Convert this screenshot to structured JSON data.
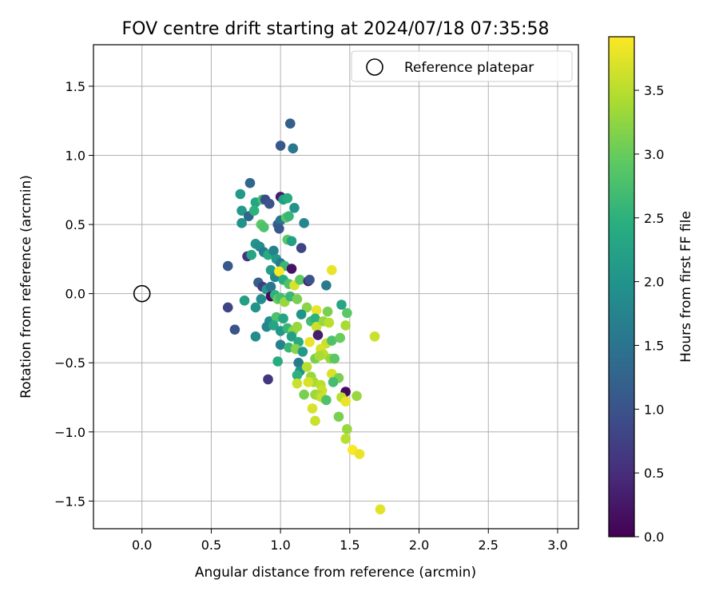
{
  "chart_data": {
    "type": "scatter",
    "title": "FOV centre drift starting at 2024/07/18 07:35:58",
    "xlabel": "Angular distance from reference (arcmin)",
    "ylabel": "Rotation from reference (arcmin)",
    "xlim": [
      -0.35,
      3.15
    ],
    "ylim": [
      -1.7,
      1.8
    ],
    "xticks": [
      0.0,
      0.5,
      1.0,
      1.5,
      2.0,
      2.5,
      3.0
    ],
    "xtick_labels": [
      "0.0",
      "0.5",
      "1.0",
      "1.5",
      "2.0",
      "2.5",
      "3.0"
    ],
    "yticks": [
      -1.5,
      -1.0,
      -0.5,
      0.0,
      0.5,
      1.0,
      1.5
    ],
    "ytick_labels": [
      "−1.5",
      "−1.0",
      "−0.5",
      "0.0",
      "0.5",
      "1.0",
      "1.5"
    ],
    "grid": true,
    "legend": {
      "placement": "top-right",
      "entries": [
        "Reference platepar"
      ]
    },
    "reference_point": {
      "x": 0.0,
      "y": 0.0
    },
    "colorbar": {
      "label": "Hours from first FF file",
      "colormap": "viridis",
      "range": [
        0.0,
        3.92
      ],
      "ticks": [
        0.0,
        0.5,
        1.0,
        1.5,
        2.0,
        2.5,
        3.0,
        3.5
      ],
      "tick_labels": [
        "0.0",
        "0.5",
        "1.0",
        "1.5",
        "2.0",
        "2.5",
        "3.0",
        "3.5"
      ]
    },
    "points": [
      {
        "x": 1.07,
        "y": 1.23,
        "t": 1.2
      },
      {
        "x": 1.0,
        "y": 1.07,
        "t": 1.05
      },
      {
        "x": 1.09,
        "y": 1.05,
        "t": 1.55
      },
      {
        "x": 0.78,
        "y": 0.8,
        "t": 1.3
      },
      {
        "x": 0.71,
        "y": 0.72,
        "t": 2.1
      },
      {
        "x": 0.72,
        "y": 0.6,
        "t": 2.1
      },
      {
        "x": 0.72,
        "y": 0.51,
        "t": 2.0
      },
      {
        "x": 0.77,
        "y": 0.56,
        "t": 1.3
      },
      {
        "x": 0.82,
        "y": 0.66,
        "t": 2.3
      },
      {
        "x": 0.87,
        "y": 0.68,
        "t": 2.7
      },
      {
        "x": 0.89,
        "y": 0.68,
        "t": 0.9
      },
      {
        "x": 0.92,
        "y": 0.65,
        "t": 1.0
      },
      {
        "x": 1.0,
        "y": 0.7,
        "t": 0.3
      },
      {
        "x": 1.02,
        "y": 0.68,
        "t": 2.2
      },
      {
        "x": 1.05,
        "y": 0.69,
        "t": 2.4
      },
      {
        "x": 1.1,
        "y": 0.62,
        "t": 2.0
      },
      {
        "x": 1.17,
        "y": 0.51,
        "t": 1.8
      },
      {
        "x": 0.81,
        "y": 0.6,
        "t": 2.5
      },
      {
        "x": 0.86,
        "y": 0.5,
        "t": 2.9
      },
      {
        "x": 0.88,
        "y": 0.48,
        "t": 2.8
      },
      {
        "x": 0.98,
        "y": 0.5,
        "t": 1.2
      },
      {
        "x": 1.0,
        "y": 0.53,
        "t": 1.5
      },
      {
        "x": 1.04,
        "y": 0.55,
        "t": 2.9
      },
      {
        "x": 1.06,
        "y": 0.56,
        "t": 2.6
      },
      {
        "x": 0.99,
        "y": 0.47,
        "t": 1.1
      },
      {
        "x": 1.05,
        "y": 0.39,
        "t": 2.9
      },
      {
        "x": 1.08,
        "y": 0.38,
        "t": 2.2
      },
      {
        "x": 1.15,
        "y": 0.33,
        "t": 0.8
      },
      {
        "x": 0.62,
        "y": 0.2,
        "t": 1.1
      },
      {
        "x": 0.76,
        "y": 0.27,
        "t": 0.6
      },
      {
        "x": 0.79,
        "y": 0.28,
        "t": 2.3
      },
      {
        "x": 0.82,
        "y": 0.36,
        "t": 2.0
      },
      {
        "x": 0.85,
        "y": 0.34,
        "t": 1.9
      },
      {
        "x": 0.88,
        "y": 0.3,
        "t": 1.6
      },
      {
        "x": 0.91,
        "y": 0.28,
        "t": 2.4
      },
      {
        "x": 0.95,
        "y": 0.31,
        "t": 1.7
      },
      {
        "x": 0.97,
        "y": 0.25,
        "t": 2.1
      },
      {
        "x": 1.0,
        "y": 0.22,
        "t": 1.6
      },
      {
        "x": 1.03,
        "y": 0.2,
        "t": 2.6
      },
      {
        "x": 1.08,
        "y": 0.18,
        "t": 0.2
      },
      {
        "x": 0.93,
        "y": 0.17,
        "t": 2.2
      },
      {
        "x": 0.96,
        "y": 0.12,
        "t": 1.8
      },
      {
        "x": 0.99,
        "y": 0.16,
        "t": 3.9
      },
      {
        "x": 1.02,
        "y": 0.1,
        "t": 2.4
      },
      {
        "x": 0.84,
        "y": 0.08,
        "t": 1.2
      },
      {
        "x": 0.87,
        "y": 0.05,
        "t": 0.7
      },
      {
        "x": 0.9,
        "y": 0.03,
        "t": 2.1
      },
      {
        "x": 0.93,
        "y": 0.05,
        "t": 1.5
      },
      {
        "x": 1.06,
        "y": 0.07,
        "t": 2.8
      },
      {
        "x": 1.1,
        "y": 0.06,
        "t": 3.7
      },
      {
        "x": 1.14,
        "y": 0.1,
        "t": 2.9
      },
      {
        "x": 1.2,
        "y": 0.09,
        "t": 0.4
      },
      {
        "x": 1.21,
        "y": 0.1,
        "t": 1.0
      },
      {
        "x": 1.33,
        "y": 0.06,
        "t": 1.6
      },
      {
        "x": 1.37,
        "y": 0.17,
        "t": 3.8
      },
      {
        "x": 0.93,
        "y": -0.02,
        "t": 0.1
      },
      {
        "x": 0.96,
        "y": -0.01,
        "t": 2.5
      },
      {
        "x": 0.98,
        "y": -0.04,
        "t": 3.0
      },
      {
        "x": 1.0,
        "y": -0.03,
        "t": 2.7
      },
      {
        "x": 1.03,
        "y": -0.06,
        "t": 3.3
      },
      {
        "x": 1.07,
        "y": -0.02,
        "t": 2.6
      },
      {
        "x": 1.12,
        "y": -0.04,
        "t": 3.1
      },
      {
        "x": 0.62,
        "y": -0.1,
        "t": 0.8
      },
      {
        "x": 0.74,
        "y": -0.05,
        "t": 2.2
      },
      {
        "x": 0.82,
        "y": -0.1,
        "t": 2.0
      },
      {
        "x": 0.86,
        "y": -0.04,
        "t": 1.9
      },
      {
        "x": 1.19,
        "y": -0.1,
        "t": 3.2
      },
      {
        "x": 1.26,
        "y": -0.12,
        "t": 3.8
      },
      {
        "x": 1.34,
        "y": -0.13,
        "t": 3.1
      },
      {
        "x": 1.44,
        "y": -0.08,
        "t": 2.3
      },
      {
        "x": 1.48,
        "y": -0.14,
        "t": 2.9
      },
      {
        "x": 1.15,
        "y": -0.15,
        "t": 2.0
      },
      {
        "x": 0.92,
        "y": -0.2,
        "t": 1.9
      },
      {
        "x": 0.97,
        "y": -0.17,
        "t": 2.8
      },
      {
        "x": 1.02,
        "y": -0.18,
        "t": 2.3
      },
      {
        "x": 0.67,
        "y": -0.26,
        "t": 1.0
      },
      {
        "x": 0.9,
        "y": -0.24,
        "t": 1.8
      },
      {
        "x": 0.95,
        "y": -0.23,
        "t": 2.3
      },
      {
        "x": 1.0,
        "y": -0.27,
        "t": 2.1
      },
      {
        "x": 1.05,
        "y": -0.25,
        "t": 2.6
      },
      {
        "x": 1.09,
        "y": -0.27,
        "t": 3.2
      },
      {
        "x": 1.12,
        "y": -0.24,
        "t": 3.3
      },
      {
        "x": 1.22,
        "y": -0.2,
        "t": 2.7
      },
      {
        "x": 1.25,
        "y": -0.18,
        "t": 2.5
      },
      {
        "x": 1.26,
        "y": -0.24,
        "t": 3.6
      },
      {
        "x": 1.31,
        "y": -0.2,
        "t": 3.3
      },
      {
        "x": 1.35,
        "y": -0.21,
        "t": 3.5
      },
      {
        "x": 1.47,
        "y": -0.23,
        "t": 3.4
      },
      {
        "x": 1.68,
        "y": -0.31,
        "t": 3.6
      },
      {
        "x": 0.82,
        "y": -0.31,
        "t": 1.9
      },
      {
        "x": 1.08,
        "y": -0.31,
        "t": 2.2
      },
      {
        "x": 1.13,
        "y": -0.35,
        "t": 2.4
      },
      {
        "x": 1.21,
        "y": -0.35,
        "t": 3.8
      },
      {
        "x": 1.27,
        "y": -0.3,
        "t": 0.3
      },
      {
        "x": 1.33,
        "y": -0.36,
        "t": 3.6
      },
      {
        "x": 1.37,
        "y": -0.34,
        "t": 2.8
      },
      {
        "x": 1.43,
        "y": -0.32,
        "t": 3.0
      },
      {
        "x": 1.0,
        "y": -0.37,
        "t": 1.7
      },
      {
        "x": 1.06,
        "y": -0.39,
        "t": 2.6
      },
      {
        "x": 1.11,
        "y": -0.4,
        "t": 3.2
      },
      {
        "x": 1.16,
        "y": -0.42,
        "t": 2.1
      },
      {
        "x": 1.29,
        "y": -0.4,
        "t": 3.7
      },
      {
        "x": 1.31,
        "y": -0.44,
        "t": 3.5
      },
      {
        "x": 1.36,
        "y": -0.47,
        "t": 3.3
      },
      {
        "x": 1.39,
        "y": -0.47,
        "t": 2.9
      },
      {
        "x": 0.98,
        "y": -0.49,
        "t": 2.4
      },
      {
        "x": 1.13,
        "y": -0.5,
        "t": 1.6
      },
      {
        "x": 1.14,
        "y": -0.56,
        "t": 2.0
      },
      {
        "x": 1.19,
        "y": -0.53,
        "t": 3.5
      },
      {
        "x": 1.25,
        "y": -0.47,
        "t": 3.1
      },
      {
        "x": 1.28,
        "y": -0.45,
        "t": 3.4
      },
      {
        "x": 1.37,
        "y": -0.58,
        "t": 3.7
      },
      {
        "x": 0.91,
        "y": -0.62,
        "t": 0.6
      },
      {
        "x": 1.12,
        "y": -0.59,
        "t": 2.5
      },
      {
        "x": 1.22,
        "y": -0.6,
        "t": 3.3
      },
      {
        "x": 1.24,
        "y": -0.64,
        "t": 3.4
      },
      {
        "x": 1.42,
        "y": -0.61,
        "t": 3.1
      },
      {
        "x": 1.38,
        "y": -0.64,
        "t": 2.7
      },
      {
        "x": 1.12,
        "y": -0.65,
        "t": 3.6
      },
      {
        "x": 1.2,
        "y": -0.64,
        "t": 3.7
      },
      {
        "x": 1.29,
        "y": -0.66,
        "t": 3.5
      },
      {
        "x": 1.3,
        "y": -0.7,
        "t": 3.6
      },
      {
        "x": 1.47,
        "y": -0.71,
        "t": 0.1
      },
      {
        "x": 1.17,
        "y": -0.73,
        "t": 3.1
      },
      {
        "x": 1.25,
        "y": -0.73,
        "t": 3.3
      },
      {
        "x": 1.28,
        "y": -0.74,
        "t": 3.4
      },
      {
        "x": 1.3,
        "y": -0.75,
        "t": 3.6
      },
      {
        "x": 1.33,
        "y": -0.77,
        "t": 2.8
      },
      {
        "x": 1.44,
        "y": -0.75,
        "t": 3.5
      },
      {
        "x": 1.47,
        "y": -0.78,
        "t": 3.8
      },
      {
        "x": 1.55,
        "y": -0.74,
        "t": 3.3
      },
      {
        "x": 1.23,
        "y": -0.83,
        "t": 3.7
      },
      {
        "x": 1.42,
        "y": -0.89,
        "t": 3.1
      },
      {
        "x": 1.25,
        "y": -0.92,
        "t": 3.6
      },
      {
        "x": 1.48,
        "y": -0.98,
        "t": 3.3
      },
      {
        "x": 1.47,
        "y": -1.05,
        "t": 3.5
      },
      {
        "x": 1.52,
        "y": -1.13,
        "t": 3.9
      },
      {
        "x": 1.57,
        "y": -1.16,
        "t": 3.8
      },
      {
        "x": 1.72,
        "y": -1.56,
        "t": 3.75
      }
    ]
  }
}
